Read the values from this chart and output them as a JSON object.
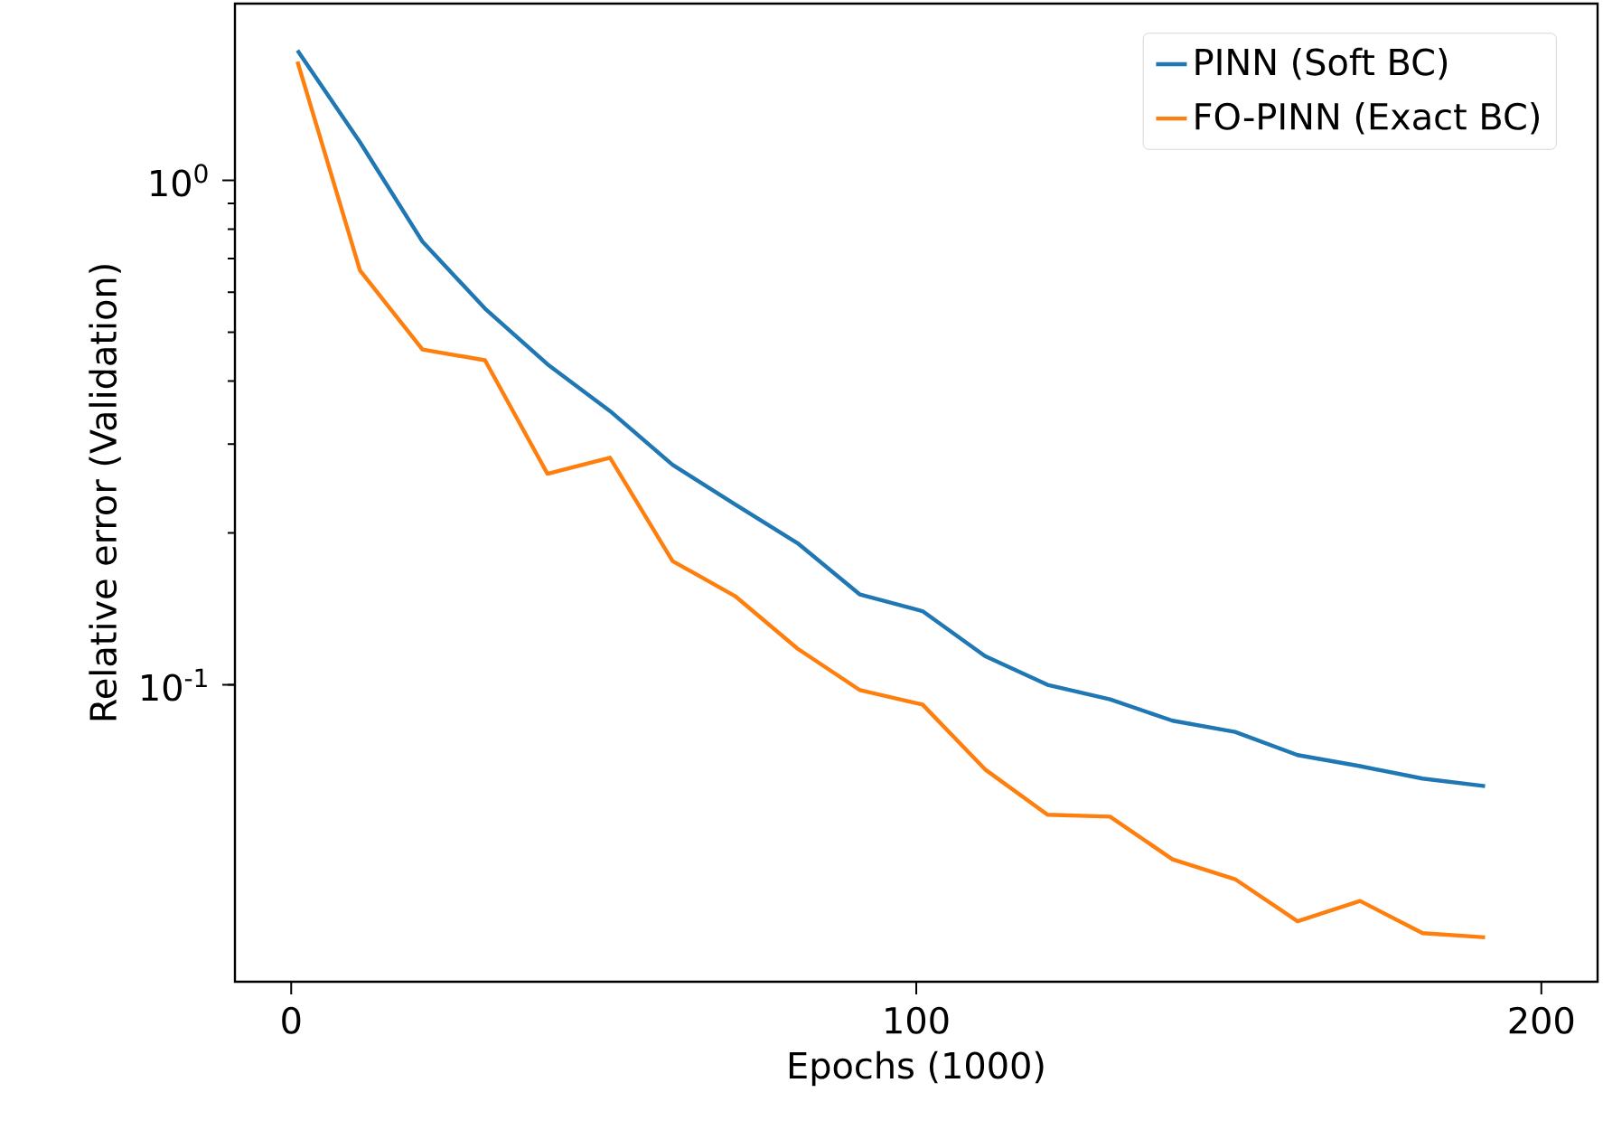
{
  "chart_data": {
    "type": "line",
    "xlabel": "Epochs (1000)",
    "ylabel": "Relative error (Validation)",
    "x": [
      1,
      11,
      21,
      31,
      41,
      51,
      61,
      71,
      81,
      91,
      101,
      111,
      121,
      131,
      141,
      151,
      161,
      171,
      181,
      191
    ],
    "series": [
      {
        "name": "PINN (Soft BC)",
        "color": "#1f77b4",
        "values": [
          1.81,
          1.19,
          0.756,
          0.557,
          0.432,
          0.349,
          0.273,
          0.228,
          0.191,
          0.151,
          0.14,
          0.114,
          0.1,
          0.0936,
          0.0849,
          0.0807,
          0.0726,
          0.069,
          0.0652,
          0.063
        ]
      },
      {
        "name": "FO-PINN (Exact BC)",
        "color": "#ff7f0e",
        "values": [
          1.72,
          0.663,
          0.462,
          0.44,
          0.262,
          0.282,
          0.176,
          0.15,
          0.118,
          0.0976,
          0.0914,
          0.068,
          0.0553,
          0.0548,
          0.0451,
          0.0412,
          0.034,
          0.0373,
          0.0322,
          0.0316
        ]
      }
    ],
    "xlim": [
      -9,
      209
    ],
    "ylim": [
      0.0258,
      2.24
    ],
    "xticks": [
      0,
      100,
      200
    ],
    "yticks": [
      {
        "value": 0.1,
        "label": "10$^{-1}$"
      },
      {
        "value": 1,
        "label": "10$^{0}$"
      }
    ],
    "log": true,
    "legend": "top right",
    "line_style": "solid"
  }
}
